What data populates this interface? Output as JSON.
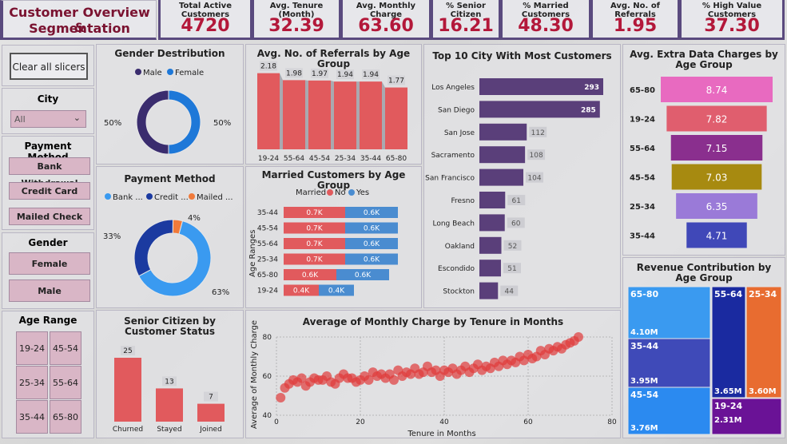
{
  "title": {
    "line1": "Customer Overview &",
    "line2": "Segmentation"
  },
  "kpis": [
    {
      "label": "Total Active Customers",
      "value": "4720"
    },
    {
      "label": "Avg. Tenure (Month)",
      "value": "32.39"
    },
    {
      "label": "Avg. Monthly Charge",
      "value": "63.60"
    },
    {
      "label": "% Senior Citizen",
      "value": "16.21"
    },
    {
      "label": "% Married Customers",
      "value": "48.30"
    },
    {
      "label": "Avg. No. of Referrals",
      "value": "1.95"
    },
    {
      "label": "% High Value Customers",
      "value": "37.30"
    }
  ],
  "slicers": {
    "clear_label": "Clear all slicers",
    "city_title": "City",
    "city_value": "All",
    "payment_title": "Payment Method",
    "payment_options": [
      "Bank Withdrawal",
      "Credit Card",
      "Mailed Check"
    ],
    "gender_title": "Gender",
    "gender_options": [
      "Female",
      "Male"
    ],
    "age_title": "Age Range",
    "age_options": [
      "19-24",
      "45-54",
      "25-34",
      "55-64",
      "35-44",
      "65-80"
    ]
  },
  "colors": {
    "male": "#3a2c6e",
    "female": "#1e78d8",
    "bar_red": "#e15a5d",
    "purple": "#5a3f7a",
    "kpi_value": "#b3183a"
  },
  "chart_data": [
    {
      "id": "gender",
      "type": "pie",
      "title": "Gender Destribution",
      "legend": [
        "Male",
        "Female"
      ],
      "values": [
        50,
        50
      ],
      "labels": [
        "50%",
        "50%"
      ]
    },
    {
      "id": "payment",
      "type": "pie",
      "title": "Payment Method",
      "legend": [
        "Bank ...",
        "Credit ...",
        "Mailed ..."
      ],
      "values": [
        63,
        33,
        4
      ],
      "labels": [
        "63%",
        "33%",
        "4%"
      ],
      "colors": [
        "#3a9af0",
        "#1b3aa0",
        "#f07a3a"
      ]
    },
    {
      "id": "referrals",
      "type": "bar",
      "title": "Avg. No. of Referrals by Age Group",
      "categories": [
        "19-24",
        "55-64",
        "45-54",
        "25-34",
        "35-44",
        "65-80"
      ],
      "values": [
        2.18,
        1.98,
        1.97,
        1.94,
        1.94,
        1.77
      ],
      "labels": [
        "2.18",
        "1.98",
        "1.97",
        "1.94",
        "1.94",
        "1.77"
      ]
    },
    {
      "id": "married",
      "type": "bar",
      "title": "Married Customers by Age Group",
      "legend_title": "Married",
      "legend": [
        "No",
        "Yes"
      ],
      "ylabel": "Age Ranges",
      "categories": [
        "35-44",
        "45-54",
        "55-64",
        "25-34",
        "65-80",
        "19-24"
      ],
      "series": [
        {
          "name": "No",
          "values": [
            0.7,
            0.7,
            0.7,
            0.7,
            0.6,
            0.4
          ],
          "labels": [
            "0.7K",
            "0.7K",
            "0.7K",
            "0.7K",
            "0.6K",
            "0.4K"
          ]
        },
        {
          "name": "Yes",
          "values": [
            0.6,
            0.6,
            0.6,
            0.6,
            0.6,
            0.4
          ],
          "labels": [
            "0.6K",
            "0.6K",
            "0.6K",
            "0.6K",
            "0.6K",
            "0.4K"
          ]
        }
      ]
    },
    {
      "id": "city",
      "type": "bar",
      "title": "Top 10 City With Most Customers",
      "categories": [
        "Los Angeles",
        "San Diego",
        "San Jose",
        "Sacramento",
        "San Francisco",
        "Fresno",
        "Long Beach",
        "Oakland",
        "Escondido",
        "Stockton"
      ],
      "values": [
        293,
        285,
        112,
        108,
        104,
        61,
        60,
        52,
        51,
        44
      ],
      "labels": [
        "293",
        "285",
        "112",
        "108",
        "104",
        "61",
        "60",
        "52",
        "51",
        "44"
      ]
    },
    {
      "id": "extra",
      "type": "bar",
      "title": "Avg. Extra Data Charges by Age Group",
      "categories": [
        "65-80",
        "19-24",
        "55-64",
        "45-54",
        "25-34",
        "35-44"
      ],
      "values": [
        8.74,
        7.82,
        7.15,
        7.03,
        6.35,
        4.71
      ],
      "labels": [
        "8.74",
        "7.82",
        "7.15",
        "7.03",
        "6.35",
        "4.71"
      ],
      "colors": [
        "#e86ac0",
        "#e05e6e",
        "#8a2f8e",
        "#a78a10",
        "#9a7ad8",
        "#4048b8"
      ]
    },
    {
      "id": "senior",
      "type": "bar",
      "title": "Senior Citizen by Customer Status",
      "categories": [
        "Churned",
        "Stayed",
        "Joined"
      ],
      "values": [
        25,
        13,
        7
      ],
      "labels": [
        "25",
        "13",
        "7"
      ]
    },
    {
      "id": "scatter",
      "type": "scatter",
      "title": "Average of Monthly Charge by Tenure in Months",
      "xlabel": "Tenure in Months",
      "ylabel": "Average of Monthly Charge",
      "xlim": [
        0,
        80
      ],
      "ylim": [
        40,
        80
      ],
      "xticks": [
        "0",
        "20",
        "40",
        "60",
        "80"
      ],
      "yticks": [
        "40",
        "60",
        "80"
      ],
      "points": [
        [
          1,
          49
        ],
        [
          2,
          54
        ],
        [
          3,
          56
        ],
        [
          4,
          58
        ],
        [
          5,
          57
        ],
        [
          6,
          59
        ],
        [
          7,
          55
        ],
        [
          8,
          57
        ],
        [
          9,
          59
        ],
        [
          10,
          58
        ],
        [
          11,
          58
        ],
        [
          12,
          60
        ],
        [
          13,
          57
        ],
        [
          14,
          56
        ],
        [
          15,
          59
        ],
        [
          16,
          61
        ],
        [
          17,
          59
        ],
        [
          18,
          59
        ],
        [
          19,
          57
        ],
        [
          20,
          58
        ],
        [
          21,
          60
        ],
        [
          22,
          58
        ],
        [
          23,
          62
        ],
        [
          24,
          60
        ],
        [
          25,
          61
        ],
        [
          26,
          59
        ],
        [
          27,
          61
        ],
        [
          28,
          58
        ],
        [
          29,
          63
        ],
        [
          30,
          60
        ],
        [
          31,
          62
        ],
        [
          32,
          61
        ],
        [
          33,
          64
        ],
        [
          34,
          61
        ],
        [
          35,
          62
        ],
        [
          36,
          65
        ],
        [
          37,
          62
        ],
        [
          38,
          63
        ],
        [
          39,
          60
        ],
        [
          40,
          63
        ],
        [
          41,
          62
        ],
        [
          42,
          64
        ],
        [
          43,
          61
        ],
        [
          44,
          63
        ],
        [
          45,
          65
        ],
        [
          46,
          62
        ],
        [
          47,
          64
        ],
        [
          48,
          66
        ],
        [
          49,
          63
        ],
        [
          50,
          65
        ],
        [
          51,
          64
        ],
        [
          52,
          67
        ],
        [
          53,
          65
        ],
        [
          54,
          68
        ],
        [
          55,
          66
        ],
        [
          56,
          68
        ],
        [
          57,
          67
        ],
        [
          58,
          70
        ],
        [
          59,
          68
        ],
        [
          60,
          71
        ],
        [
          61,
          69
        ],
        [
          62,
          70
        ],
        [
          63,
          73
        ],
        [
          64,
          71
        ],
        [
          65,
          74
        ],
        [
          66,
          73
        ],
        [
          67,
          75
        ],
        [
          68,
          74
        ],
        [
          69,
          76
        ],
        [
          70,
          77
        ],
        [
          71,
          78
        ],
        [
          72,
          80
        ]
      ]
    },
    {
      "id": "revenue",
      "type": "heatmap",
      "title": "Revenue Contribution by Age Group",
      "categories": [
        "65-80",
        "35-44",
        "45-54",
        "55-64",
        "25-34",
        "19-24"
      ],
      "values": [
        4.1,
        3.95,
        3.76,
        3.65,
        3.6,
        2.31
      ],
      "labels": [
        "4.10M",
        "3.95M",
        "3.76M",
        "3.65M",
        "3.60M",
        "2.31M"
      ],
      "colors": [
        "#3a9af0",
        "#3f4ab8",
        "#2b8af0",
        "#1a2aa0",
        "#e86c30",
        "#6a1296"
      ]
    }
  ]
}
